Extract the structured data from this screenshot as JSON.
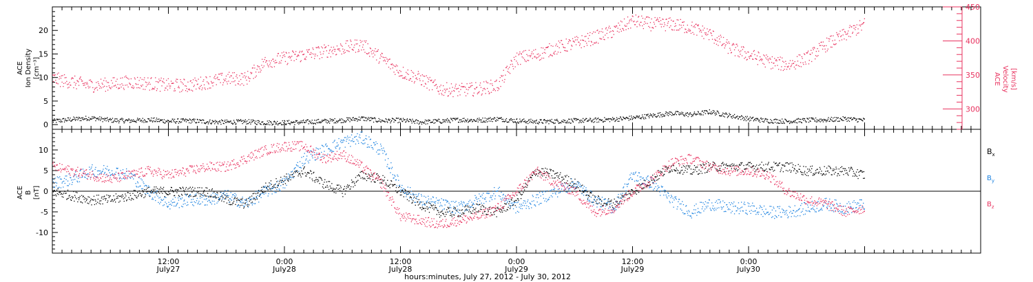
{
  "colors": {
    "black": "#000000",
    "red": "#e8315e",
    "blue": "#1b82e0"
  },
  "xaxis": {
    "title": "hours:minutes, July 27, 2012 - July 30, 2012",
    "range_hours": [
      0,
      96
    ],
    "ticks": [
      {
        "hour": 12,
        "time": "12:00",
        "date": "July27"
      },
      {
        "hour": 24,
        "time": "0:00",
        "date": "July28"
      },
      {
        "hour": 36,
        "time": "12:00",
        "date": "July28"
      },
      {
        "hour": 48,
        "time": "0:00",
        "date": "July29"
      },
      {
        "hour": 60,
        "time": "12:00",
        "date": "July29"
      },
      {
        "hour": 72,
        "time": "0:00",
        "date": "July30"
      }
    ]
  },
  "chart_data": [
    {
      "type": "scatter",
      "panel": "top",
      "ylabel": [
        "ACE",
        "Ion Density",
        "[cm⁻³]"
      ],
      "ylim": [
        -1,
        25
      ],
      "yticks": [
        0,
        5,
        10,
        15,
        20
      ],
      "y2label": [
        "ACE",
        "Velocity",
        "[km/s]"
      ],
      "y2lim": [
        270,
        450
      ],
      "y2ticks": [
        300,
        350,
        400,
        450
      ],
      "series": [
        {
          "color": "#000000",
          "axis": "left",
          "x": [
            0,
            2,
            4,
            6,
            8,
            10,
            12,
            14,
            16,
            18,
            20,
            22,
            24,
            26,
            28,
            30,
            32,
            34,
            36,
            38,
            40,
            42,
            44,
            46,
            48,
            50,
            52,
            54,
            56,
            58,
            60,
            62,
            64,
            66,
            68,
            70,
            72,
            74,
            76,
            78,
            80,
            82,
            84
          ],
          "y": [
            0.8,
            1.2,
            1.5,
            1.0,
            0.9,
            1.1,
            0.8,
            0.9,
            0.7,
            0.6,
            0.7,
            0.5,
            0.5,
            0.6,
            0.8,
            1.0,
            1.4,
            0.9,
            1.0,
            0.6,
            0.8,
            1.1,
            1.0,
            1.3,
            0.9,
            0.7,
            0.8,
            0.9,
            1.0,
            1.2,
            1.5,
            2.0,
            2.5,
            2.2,
            2.8,
            2.0,
            1.3,
            0.9,
            0.8,
            1.0,
            1.1,
            1.3,
            1.0
          ]
        },
        {
          "color": "#e8315e",
          "axis": "right",
          "x": [
            0,
            2,
            4,
            6,
            8,
            10,
            12,
            14,
            16,
            18,
            20,
            22,
            24,
            26,
            28,
            30,
            32,
            34,
            36,
            38,
            40,
            42,
            44,
            46,
            48,
            50,
            52,
            54,
            56,
            58,
            60,
            62,
            64,
            66,
            68,
            70,
            72,
            74,
            76,
            78,
            80,
            82,
            84
          ],
          "y": [
            345,
            340,
            335,
            337,
            340,
            338,
            335,
            335,
            340,
            345,
            345,
            370,
            375,
            380,
            385,
            390,
            395,
            375,
            355,
            345,
            330,
            328,
            330,
            335,
            375,
            380,
            390,
            397,
            405,
            415,
            430,
            425,
            425,
            420,
            410,
            390,
            380,
            370,
            365,
            375,
            395,
            410,
            425
          ]
        }
      ]
    },
    {
      "type": "scatter",
      "panel": "bottom",
      "ylabel": [
        "ACE",
        "B",
        "[nT]"
      ],
      "ylim": [
        -15,
        15
      ],
      "yticks": [
        -10,
        -5,
        0,
        5,
        10
      ],
      "series": [
        {
          "name": "Bx",
          "color": "#000000",
          "x": [
            0,
            2,
            4,
            6,
            8,
            10,
            12,
            14,
            16,
            18,
            20,
            22,
            24,
            26,
            28,
            30,
            32,
            34,
            36,
            38,
            40,
            42,
            44,
            46,
            48,
            50,
            52,
            54,
            56,
            58,
            60,
            62,
            64,
            66,
            68,
            70,
            72,
            74,
            76,
            78,
            80,
            82,
            84
          ],
          "y": [
            0,
            -1,
            -2,
            -2,
            -1,
            0,
            0,
            0,
            0,
            -2,
            -3,
            1,
            3,
            5,
            2,
            0,
            4,
            3,
            0,
            -3,
            -5,
            -5,
            -4,
            -5,
            -2,
            5,
            4,
            2,
            -2,
            -3,
            0,
            3,
            6,
            5,
            6,
            6,
            6,
            6,
            6,
            5,
            5,
            5,
            4
          ]
        },
        {
          "name": "By",
          "color": "#1b82e0",
          "x": [
            0,
            2,
            4,
            6,
            8,
            10,
            12,
            14,
            16,
            18,
            20,
            22,
            24,
            26,
            28,
            30,
            32,
            34,
            36,
            38,
            40,
            42,
            44,
            46,
            48,
            50,
            52,
            54,
            56,
            58,
            60,
            62,
            64,
            66,
            68,
            70,
            72,
            74,
            76,
            78,
            80,
            82,
            84
          ],
          "y": [
            2,
            3,
            5,
            5,
            4,
            0,
            -3,
            -2,
            -2,
            -1,
            -3,
            0,
            2,
            8,
            10,
            12,
            13,
            10,
            1,
            -2,
            -3,
            -4,
            -2,
            0,
            -4,
            -2,
            0,
            2,
            -2,
            -4,
            4,
            2,
            -2,
            -5,
            -3,
            -4,
            -4,
            -5,
            -5,
            -4,
            -3,
            -4,
            -3
          ]
        },
        {
          "name": "Bz",
          "color": "#e8315e",
          "x": [
            0,
            2,
            4,
            6,
            8,
            10,
            12,
            14,
            16,
            18,
            20,
            22,
            24,
            26,
            28,
            30,
            32,
            34,
            36,
            38,
            40,
            42,
            44,
            46,
            48,
            50,
            52,
            54,
            56,
            58,
            60,
            62,
            64,
            66,
            68,
            70,
            72,
            74,
            76,
            78,
            80,
            82,
            84
          ],
          "y": [
            6,
            5,
            4,
            3,
            4,
            5,
            4,
            5,
            6,
            6,
            8,
            10,
            11,
            11,
            8,
            9,
            6,
            2,
            -6,
            -7,
            -8,
            -7,
            -6,
            -4,
            0,
            5,
            2,
            0,
            -5,
            -4,
            0,
            3,
            7,
            8,
            6,
            5,
            5,
            4,
            0,
            -2,
            -3,
            -5,
            -4
          ]
        }
      ]
    }
  ]
}
